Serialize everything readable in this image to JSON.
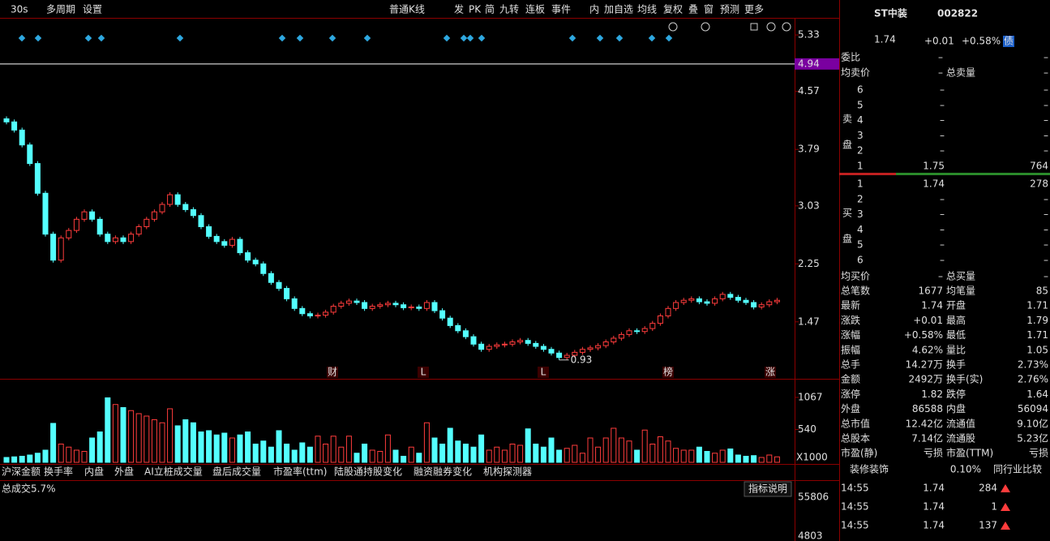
{
  "toolbar": {
    "period": "30s",
    "items": [
      "多周期",
      "设置",
      "普通K线",
      "发",
      "PK",
      "简",
      "九转",
      "连板",
      "事件",
      "内",
      "加自选",
      "均线",
      "复权",
      "叠",
      "窗",
      "预测",
      "更多"
    ]
  },
  "chart_data": {
    "type": "candlestick",
    "closes": [
      4.16,
      4.05,
      3.85,
      3.6,
      3.2,
      2.65,
      2.3,
      2.6,
      2.7,
      2.85,
      2.95,
      2.85,
      2.65,
      2.55,
      2.6,
      2.55,
      2.65,
      2.75,
      2.85,
      2.95,
      3.05,
      3.18,
      3.05,
      2.98,
      2.9,
      2.75,
      2.62,
      2.55,
      2.5,
      2.58,
      2.4,
      2.3,
      2.25,
      2.12,
      2.0,
      1.92,
      1.78,
      1.65,
      1.58,
      1.55,
      1.56,
      1.6,
      1.68,
      1.72,
      1.75,
      1.73,
      1.65,
      1.68,
      1.7,
      1.72,
      1.7,
      1.66,
      1.67,
      1.65,
      1.73,
      1.62,
      1.52,
      1.42,
      1.35,
      1.27,
      1.17,
      1.1,
      1.14,
      1.16,
      1.17,
      1.2,
      1.22,
      1.18,
      1.14,
      1.1,
      1.05,
      0.99,
      1.02,
      1.06,
      1.1,
      1.12,
      1.15,
      1.2,
      1.25,
      1.3,
      1.35,
      1.34,
      1.38,
      1.45,
      1.55,
      1.65,
      1.73,
      1.76,
      1.78,
      1.74,
      1.72,
      1.78,
      1.84,
      1.8,
      1.76,
      1.73,
      1.67,
      1.7,
      1.74,
      1.76
    ],
    "volumes": [
      80,
      90,
      100,
      120,
      150,
      200,
      640,
      300,
      250,
      200,
      180,
      400,
      500,
      1060,
      950,
      900,
      850,
      800,
      760,
      700,
      650,
      880,
      600,
      700,
      650,
      500,
      520,
      450,
      480,
      400,
      450,
      500,
      300,
      350,
      250,
      520,
      300,
      200,
      320,
      250,
      430,
      300,
      430,
      250,
      430,
      150,
      300,
      200,
      180,
      450,
      200,
      100,
      250,
      150,
      650,
      400,
      300,
      560,
      350,
      300,
      250,
      450,
      200,
      250,
      200,
      300,
      280,
      550,
      300,
      250,
      400,
      200,
      230,
      280,
      150,
      400,
      250,
      400,
      560,
      400,
      350,
      200,
      530,
      300,
      420,
      350,
      230,
      200,
      200,
      250,
      180,
      150,
      200,
      220,
      120,
      100,
      110,
      80,
      120,
      90
    ],
    "ylim": [
      0.704,
      5.56
    ],
    "yticks": [
      5.33,
      4.57,
      3.79,
      3.03,
      2.25,
      1.47
    ],
    "current_price_line": 4.94,
    "min_label": 0.93,
    "events": [
      "财",
      "L",
      "L",
      "榜",
      "涨"
    ],
    "vol_ylim": [
      0,
      1333
    ],
    "vol_yticks": [
      1067,
      540
    ],
    "vol_unit": "X1000",
    "up_color": "#ff3c3c",
    "down_color": "#54ffff",
    "indicator_title": "总成交5.7%",
    "indicator_button": "指标说明",
    "ind_yticks": [
      55806,
      4803
    ],
    "tabs": [
      "沪深金额",
      "换手率",
      "内盘",
      "外盘",
      "AI立桩成交量",
      "盘后成交量",
      "市盈率(ttm)",
      "陆股通持股变化",
      "融资融券变化",
      "机构探测器"
    ]
  },
  "quote": {
    "name": "ST中装",
    "code": "002822",
    "price": 1.74,
    "change": "+0.01",
    "pct": "+0.58%",
    "badge": "债"
  },
  "order_book": {
    "wei_bi": [
      "委比",
      "–",
      "–"
    ],
    "avg_sell": [
      "均卖价",
      "–",
      "总卖量",
      "–"
    ],
    "sell_title": "卖盘",
    "sell": [
      [
        "6",
        "–",
        "–"
      ],
      [
        "5",
        "–",
        "–"
      ],
      [
        "4",
        "–",
        "–"
      ],
      [
        "3",
        "–",
        "–"
      ],
      [
        "2",
        "–",
        "–"
      ],
      [
        "1",
        1.75,
        764
      ]
    ],
    "buy_title": "买盘",
    "buy": [
      [
        "1",
        1.74,
        278
      ],
      [
        "2",
        "–",
        "–"
      ],
      [
        "3",
        "–",
        "–"
      ],
      [
        "4",
        "–",
        "–"
      ],
      [
        "5",
        "–",
        "–"
      ],
      [
        "6",
        "–",
        "–"
      ]
    ],
    "avg_buy": [
      "均买价",
      "–",
      "总买量",
      "–"
    ]
  },
  "stats": [
    [
      "总笔数",
      "1677",
      "均笔量",
      "85"
    ],
    [
      "最新",
      "1.74",
      "开盘",
      "1.71"
    ],
    [
      "涨跌",
      "+0.01",
      "最高",
      "1.79"
    ],
    [
      "涨幅",
      "+0.58%",
      "最低",
      "1.71"
    ],
    [
      "振幅",
      "4.62%",
      "量比",
      "1.05"
    ],
    [
      "总手",
      "14.27万",
      "换手",
      "2.73%"
    ],
    [
      "金额",
      "2492万",
      "换手(实)",
      "2.76%"
    ],
    [
      "涨停",
      "1.82",
      "跌停",
      "1.64"
    ],
    [
      "外盘",
      "86588",
      "内盘",
      "56094"
    ],
    [
      "总市值",
      "12.42亿",
      "流通值",
      "9.10亿"
    ],
    [
      "总股本",
      "7.14亿",
      "流通股",
      "5.23亿"
    ],
    [
      "市盈(静)",
      "亏损",
      "市盈(TTM)",
      "亏损"
    ]
  ],
  "stat_colors": [
    [
      "#ffffff",
      "#54ffff"
    ],
    [
      "#ff3c3c",
      "#00e600"
    ],
    [
      "#ff3c3c",
      "#ff3c3c"
    ],
    [
      "#ff3c3c",
      "#00e600"
    ],
    [
      "#ffffff",
      "#ff3c3c"
    ],
    [
      "#ffff54",
      "#ffff54"
    ],
    [
      "#ffff54",
      "#ffff54"
    ],
    [
      "#ff3c3c",
      "#00e600"
    ],
    [
      "#ff3c3c",
      "#00e600"
    ],
    [
      "#ffff54",
      "#ffff54"
    ],
    [
      "#ffff54",
      "#ffff54"
    ],
    [
      "#ffff54",
      "#ffff54"
    ]
  ],
  "sector": {
    "name": "装修装饰",
    "pct": "0.10%",
    "compare": "同行业比较"
  },
  "trades": [
    [
      "14:55",
      1.74,
      284
    ],
    [
      "14:55",
      1.74,
      1
    ],
    [
      "14:55",
      1.74,
      137
    ]
  ]
}
